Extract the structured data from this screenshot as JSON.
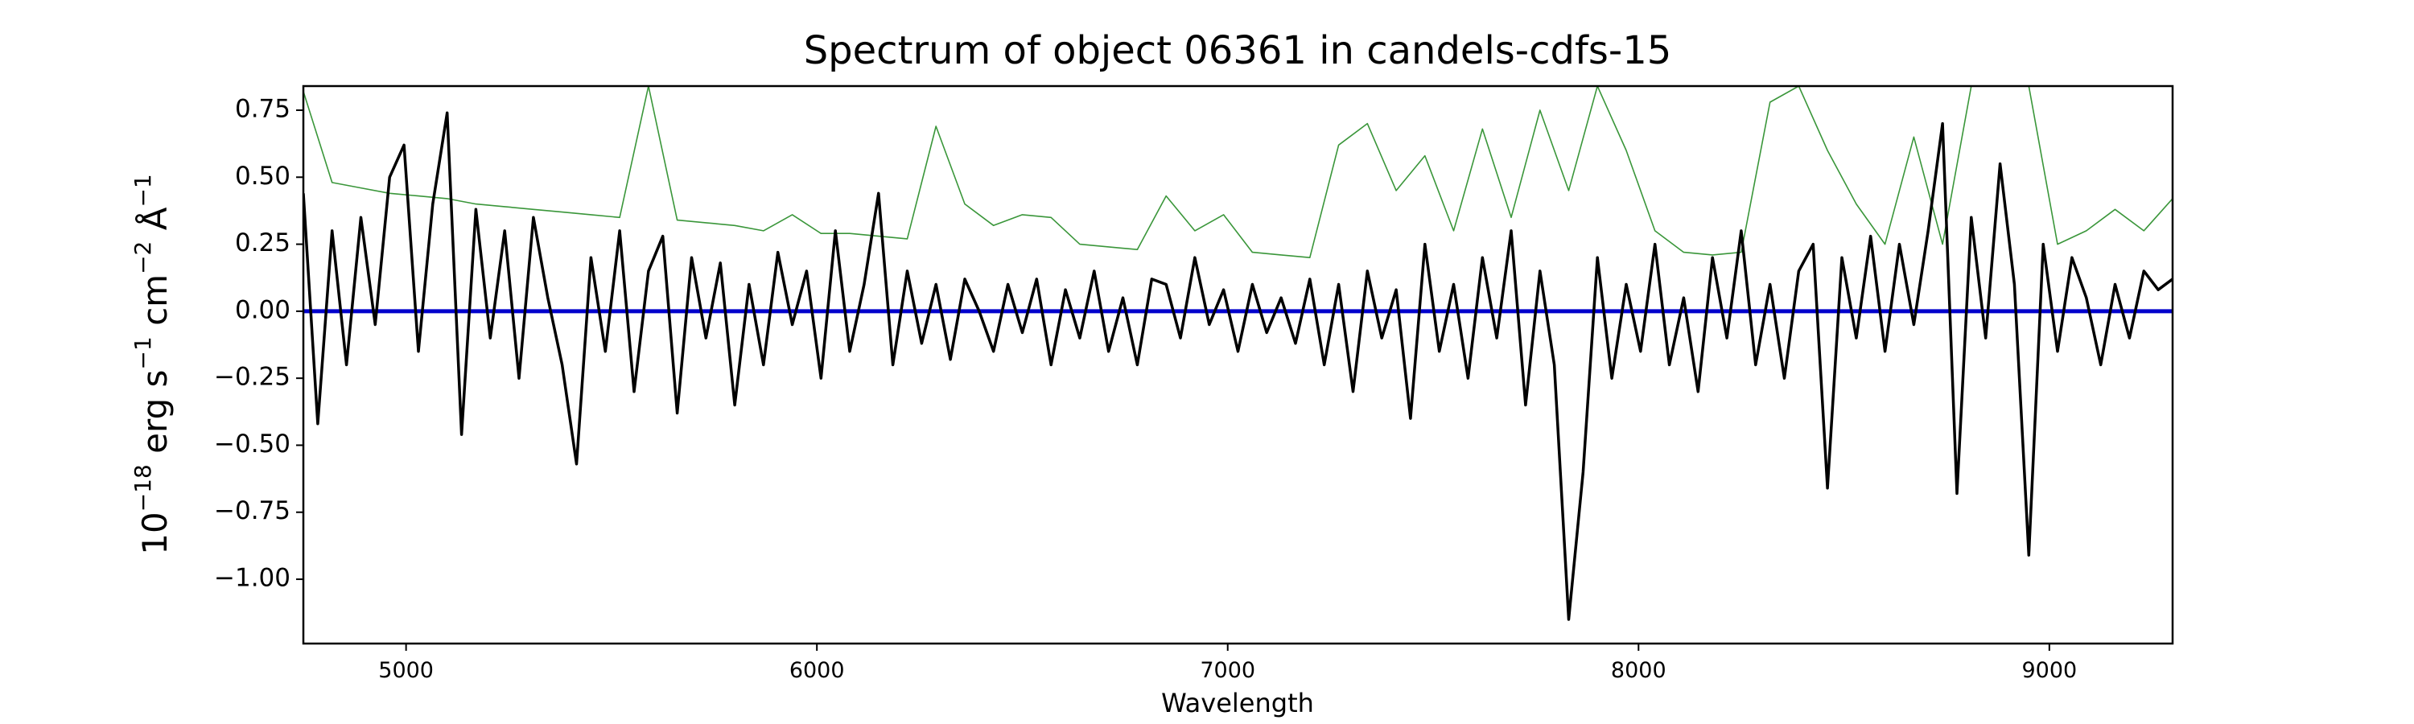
{
  "chart_data": {
    "type": "line",
    "title": "Spectrum of object 06361 in candels-cdfs-15",
    "xlabel": "Wavelength",
    "ylabel_parts": [
      [
        "10",
        "−18"
      ],
      [
        " erg s",
        "−1"
      ],
      [
        " cm",
        "−2"
      ],
      [
        " Å",
        "−1"
      ]
    ],
    "xlim": [
      4750,
      9300
    ],
    "ylim": [
      -1.24,
      0.84
    ],
    "xticks": [
      5000,
      6000,
      7000,
      8000,
      9000
    ],
    "yticks": [
      {
        "value": -1,
        "label": "−1.00"
      },
      {
        "value": -0.75,
        "label": "−0.75"
      },
      {
        "value": -0.5,
        "label": "−0.50"
      },
      {
        "value": -0.25,
        "label": "−0.25"
      },
      {
        "value": 0,
        "label": "0.00"
      },
      0.25,
      {
        "value": 0.5,
        "label": "0.50"
      },
      0.75
    ],
    "series": [
      {
        "color": "#3a963a",
        "width": 1.6,
        "x": [
          4750,
          4820,
          4890,
          4960,
          5030,
          5100,
          5170,
          5240,
          5310,
          5380,
          5450,
          5520,
          5590,
          5660,
          5730,
          5800,
          5870,
          5940,
          6010,
          6080,
          6150,
          6220,
          6290,
          6360,
          6430,
          6500,
          6570,
          6640,
          6710,
          6780,
          6850,
          6920,
          6990,
          7060,
          7130,
          7200,
          7270,
          7340,
          7410,
          7480,
          7550,
          7620,
          7690,
          7760,
          7830,
          7900,
          7970,
          8040,
          8110,
          8180,
          8250,
          8320,
          8390,
          8460,
          8530,
          8600,
          8670,
          8740,
          8810,
          8880,
          8950,
          9020,
          9090,
          9160,
          9230,
          9300
        ],
        "values": [
          0.82,
          0.48,
          0.46,
          0.44,
          0.43,
          0.42,
          0.4,
          0.39,
          0.38,
          0.37,
          0.36,
          0.35,
          0.84,
          0.34,
          0.33,
          0.32,
          0.3,
          0.36,
          0.29,
          0.29,
          0.28,
          0.27,
          0.69,
          0.4,
          0.32,
          0.36,
          0.35,
          0.25,
          0.24,
          0.23,
          0.43,
          0.3,
          0.36,
          0.22,
          0.21,
          0.2,
          0.62,
          0.7,
          0.45,
          0.58,
          0.3,
          0.68,
          0.35,
          0.75,
          0.45,
          0.84,
          0.6,
          0.3,
          0.22,
          0.21,
          0.22,
          0.78,
          0.84,
          0.6,
          0.4,
          0.25,
          0.65,
          0.25,
          0.84,
          0.84,
          0.84,
          0.25,
          0.3,
          0.38,
          0.3,
          0.42
        ]
      },
      {
        "color": "#0000cc",
        "width": 5,
        "x": [
          4750,
          9300
        ],
        "values": [
          0,
          0
        ]
      },
      {
        "color": "#000000",
        "width": 3.5,
        "x": [
          4750,
          4785,
          4820,
          4855,
          4890,
          4925,
          4960,
          4995,
          5030,
          5065,
          5100,
          5135,
          5170,
          5205,
          5240,
          5275,
          5310,
          5345,
          5380,
          5415,
          5450,
          5485,
          5520,
          5555,
          5590,
          5625,
          5660,
          5695,
          5730,
          5765,
          5800,
          5835,
          5870,
          5905,
          5940,
          5975,
          6010,
          6045,
          6080,
          6115,
          6150,
          6185,
          6220,
          6255,
          6290,
          6325,
          6360,
          6395,
          6430,
          6465,
          6500,
          6535,
          6570,
          6605,
          6640,
          6675,
          6710,
          6745,
          6780,
          6815,
          6850,
          6885,
          6920,
          6955,
          6990,
          7025,
          7060,
          7095,
          7130,
          7165,
          7200,
          7235,
          7270,
          7305,
          7340,
          7375,
          7410,
          7445,
          7480,
          7515,
          7550,
          7585,
          7620,
          7655,
          7690,
          7725,
          7760,
          7795,
          7830,
          7865,
          7900,
          7935,
          7970,
          8005,
          8040,
          8075,
          8110,
          8145,
          8180,
          8215,
          8250,
          8285,
          8320,
          8355,
          8390,
          8425,
          8460,
          8495,
          8530,
          8565,
          8600,
          8635,
          8670,
          8705,
          8740,
          8775,
          8810,
          8845,
          8880,
          8915,
          8950,
          8985,
          9020,
          9055,
          9090,
          9125,
          9160,
          9195,
          9230,
          9265,
          9300
        ],
        "values": [
          0.44,
          -0.42,
          0.3,
          -0.2,
          0.35,
          -0.05,
          0.5,
          0.62,
          -0.15,
          0.4,
          0.74,
          -0.46,
          0.38,
          -0.1,
          0.3,
          -0.25,
          0.35,
          0.05,
          -0.2,
          -0.57,
          0.2,
          -0.15,
          0.3,
          -0.3,
          0.15,
          0.28,
          -0.38,
          0.2,
          -0.1,
          0.18,
          -0.35,
          0.1,
          -0.2,
          0.22,
          -0.05,
          0.15,
          -0.25,
          0.3,
          -0.15,
          0.1,
          0.44,
          -0.2,
          0.15,
          -0.12,
          0.1,
          -0.18,
          0.12,
          0.0,
          -0.15,
          0.1,
          -0.08,
          0.12,
          -0.2,
          0.08,
          -0.1,
          0.15,
          -0.15,
          0.05,
          -0.2,
          0.12,
          0.1,
          -0.1,
          0.2,
          -0.05,
          0.08,
          -0.15,
          0.1,
          -0.08,
          0.05,
          -0.12,
          0.12,
          -0.2,
          0.1,
          -0.3,
          0.15,
          -0.1,
          0.08,
          -0.4,
          0.25,
          -0.15,
          0.1,
          -0.25,
          0.2,
          -0.1,
          0.3,
          -0.35,
          0.15,
          -0.2,
          -1.15,
          -0.6,
          0.2,
          -0.25,
          0.1,
          -0.15,
          0.25,
          -0.2,
          0.05,
          -0.3,
          0.2,
          -0.1,
          0.3,
          -0.2,
          0.1,
          -0.25,
          0.15,
          0.25,
          -0.66,
          0.2,
          -0.1,
          0.28,
          -0.15,
          0.25,
          -0.05,
          0.3,
          0.7,
          -0.68,
          0.35,
          -0.1,
          0.55,
          0.1,
          -0.91,
          0.25,
          -0.15,
          0.2,
          0.05,
          -0.2,
          0.1,
          -0.1,
          0.15,
          0.08,
          0.12
        ]
      }
    ]
  }
}
